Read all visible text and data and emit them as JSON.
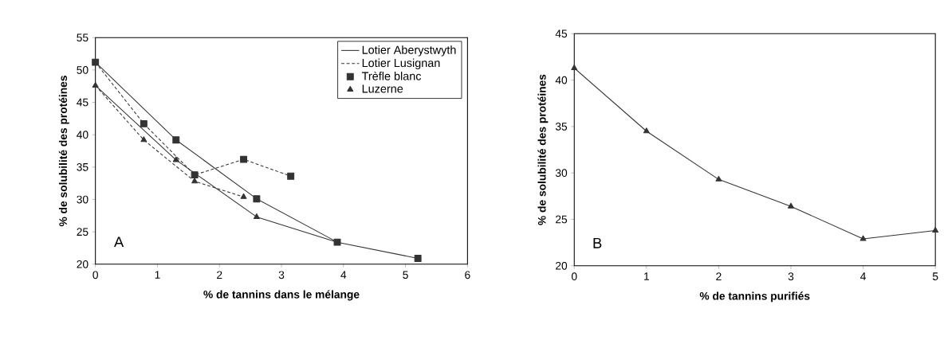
{
  "chart_data": [
    {
      "type": "line",
      "xlabel": "% de tannins dans le mélange",
      "ylabel": "% de solubilité des protéines",
      "xlim": [
        0,
        6
      ],
      "ylim": [
        20,
        55
      ],
      "xticks": [
        0,
        1,
        2,
        3,
        4,
        5,
        6
      ],
      "yticks": [
        20,
        25,
        30,
        35,
        40,
        45,
        50,
        55
      ],
      "legend": "top right",
      "annotations": [
        "A"
      ],
      "series": [
        {
          "name": "Lotier Aberystwyth",
          "color": "#333333",
          "marker": "none",
          "line_style": "solid",
          "x": [
            0,
            1.3,
            2.6,
            3.9,
            5.2,
            3.9,
            2.6,
            1.3,
            0
          ],
          "values": [
            51.2,
            39.2,
            30.1,
            23.4,
            20.9,
            23.4,
            27.3,
            36.1,
            47.6
          ]
        },
        {
          "name": "Lotier Lusignan",
          "color": "#333333",
          "marker": "none",
          "line_style": "dashed",
          "x": [
            0,
            0.78,
            1.6,
            2.39,
            3.15,
            null,
            0,
            0.78,
            1.6,
            2.39
          ],
          "values": [
            51.2,
            41.7,
            33.8,
            36.2,
            33.6,
            null,
            47.6,
            39.2,
            32.8,
            30.4
          ]
        },
        {
          "name": "Trèfle blanc",
          "type": "scatter",
          "color": "#333333",
          "marker": "square",
          "x": [
            0,
            0.78,
            1.3,
            1.6,
            2.39,
            2.6,
            3.15,
            3.9,
            5.2
          ],
          "values": [
            51.2,
            41.7,
            39.2,
            33.8,
            36.2,
            30.1,
            33.6,
            23.4,
            20.9
          ]
        },
        {
          "name": "Luzerne",
          "type": "scatter",
          "color": "#333333",
          "marker": "triangle",
          "x": [
            0,
            0.78,
            1.3,
            1.6,
            2.39,
            2.6
          ],
          "values": [
            47.6,
            39.2,
            36.1,
            32.8,
            30.4,
            27.3
          ]
        }
      ]
    },
    {
      "type": "line",
      "xlabel": "% de tannins purifiés",
      "ylabel": "% de solubilité des protéines",
      "xlim": [
        0,
        5
      ],
      "ylim": [
        20,
        45
      ],
      "xticks": [
        0,
        1,
        2,
        3,
        4,
        5
      ],
      "yticks": [
        20,
        25,
        30,
        35,
        40,
        45
      ],
      "annotations": [
        "B"
      ],
      "series": [
        {
          "color": "#333333",
          "marker": "triangle",
          "line_style": "solid",
          "x": [
            0,
            1,
            2,
            3,
            4,
            5
          ],
          "values": [
            41.3,
            34.5,
            29.3,
            26.4,
            22.9,
            23.8
          ]
        }
      ]
    }
  ]
}
